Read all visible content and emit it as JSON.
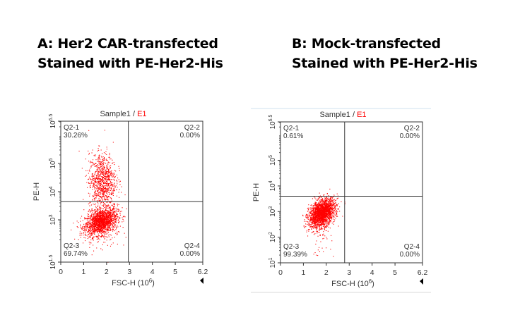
{
  "panels": [
    {
      "line1": "A: Her2 CAR-transfected",
      "line2": "Stained with PE-Her2-His"
    },
    {
      "line1": "B: Mock-transfected",
      "line2": "Stained with PE-Her2-His"
    }
  ],
  "chart_data": [
    {
      "type": "scatter",
      "title_sample": "Sample1",
      "title_sep": " / ",
      "title_gate": "E1",
      "xlabel": "FSC-H",
      "xunit": "(10",
      "xunit_exp": "6",
      "xunit_close": ")",
      "ylabel": "PE-H",
      "xlim": [
        0,
        6.2
      ],
      "ylim_log10": [
        1.5,
        6.5
      ],
      "x_ticks": [
        "0",
        "1",
        "2",
        "3",
        "4",
        "5",
        "6.2"
      ],
      "y_ticks": [
        {
          "exp": "6.5",
          "v": 6.5
        },
        {
          "exp": "5",
          "v": 5
        },
        {
          "exp": "4",
          "v": 4
        },
        {
          "exp": "3",
          "v": 3
        },
        {
          "exp": "1.5",
          "v": 1.5
        }
      ],
      "gate_x": 2.95,
      "gate_y_log10": 3.65,
      "quadrants": [
        {
          "name": "Q2-1",
          "pct": "30.26%"
        },
        {
          "name": "Q2-2",
          "pct": "0.00%"
        },
        {
          "name": "Q2-3",
          "pct": "69.74%"
        },
        {
          "name": "Q2-4",
          "pct": "0.00%"
        }
      ],
      "clusters": [
        {
          "n": 1700,
          "mx": 1.75,
          "sx": 0.35,
          "my": 2.95,
          "sy": 0.22,
          "slope": 0.25
        },
        {
          "n": 900,
          "mx": 1.8,
          "sx": 0.3,
          "my": 4.4,
          "sy": 0.5,
          "slope": 0
        },
        {
          "n": 120,
          "mx": 1.8,
          "sx": 0.4,
          "my": 2.6,
          "sy": 0.35,
          "slope": 0
        }
      ],
      "color": "#ff0000"
    },
    {
      "type": "scatter",
      "title_sample": "Sample1",
      "title_sep": " / ",
      "title_gate": "E1",
      "xlabel": "FSC-H",
      "xunit": "(10",
      "xunit_exp": "6",
      "xunit_close": ")",
      "ylabel": "PE-H",
      "xlim": [
        0,
        6.2
      ],
      "ylim_log10": [
        1,
        6.5
      ],
      "x_ticks": [
        "0",
        "1",
        "2",
        "3",
        "4",
        "5",
        "6.2"
      ],
      "y_ticks": [
        {
          "exp": "6.5",
          "v": 6.5
        },
        {
          "exp": "5",
          "v": 5
        },
        {
          "exp": "4",
          "v": 4
        },
        {
          "exp": "3",
          "v": 3
        },
        {
          "exp": "2",
          "v": 2
        },
        {
          "exp": "1",
          "v": 1
        }
      ],
      "gate_x": 2.8,
      "gate_y_log10": 3.6,
      "quadrants": [
        {
          "name": "Q2-1",
          "pct": "0.61%"
        },
        {
          "name": "Q2-2",
          "pct": "0.00%"
        },
        {
          "name": "Q2-3",
          "pct": "99.39%"
        },
        {
          "name": "Q2-4",
          "pct": "0.00%"
        }
      ],
      "clusters": [
        {
          "n": 2200,
          "mx": 1.8,
          "sx": 0.28,
          "my": 2.95,
          "sy": 0.25,
          "slope": 0.35
        },
        {
          "n": 60,
          "mx": 1.7,
          "sx": 0.25,
          "my": 2.2,
          "sy": 0.45,
          "slope": 0
        }
      ],
      "color": "#ff0000"
    }
  ]
}
